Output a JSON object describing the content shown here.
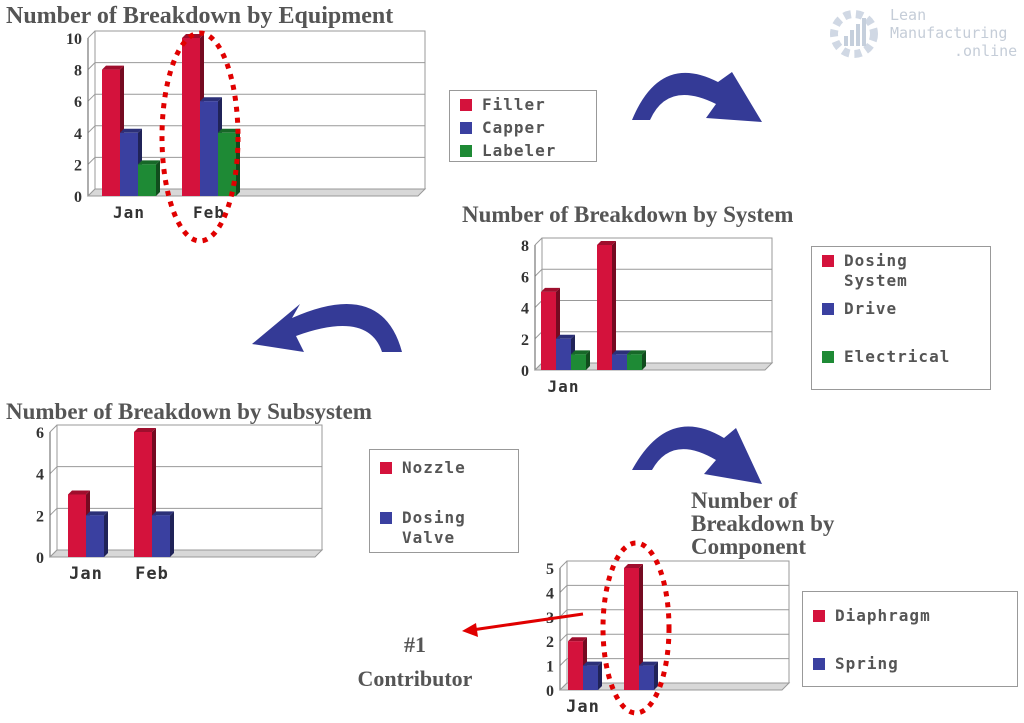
{
  "charts": [
    {
      "id": "equipment",
      "title": "Number of Breakdown by Equipment",
      "chart_data": {
        "type": "bar",
        "categories": [
          "Jan",
          "Feb"
        ],
        "series": [
          {
            "name": "Filler",
            "values": [
              8,
              10
            ]
          },
          {
            "name": "Capper",
            "values": [
              4,
              6
            ]
          },
          {
            "name": "Labeler",
            "values": [
              2,
              4
            ]
          }
        ],
        "ylim": [
          0,
          10
        ],
        "yticks": [
          0,
          2,
          4,
          6,
          8,
          10
        ],
        "grid": true,
        "legend": "right"
      }
    },
    {
      "id": "system",
      "title": "Number of Breakdown by System",
      "chart_data": {
        "type": "bar",
        "categories": [
          "Jan",
          ""
        ],
        "series": [
          {
            "name": "Dosing System",
            "values": [
              5,
              8
            ]
          },
          {
            "name": "Drive",
            "values": [
              2,
              1
            ]
          },
          {
            "name": "Electrical",
            "values": [
              1,
              1
            ]
          }
        ],
        "ylim": [
          0,
          8
        ],
        "yticks": [
          0,
          2,
          4,
          6,
          8
        ],
        "grid": true,
        "legend": "right"
      }
    },
    {
      "id": "subsystem",
      "title": "Number of Breakdown by Subsystem",
      "chart_data": {
        "type": "bar",
        "categories": [
          "Jan",
          "Feb"
        ],
        "series": [
          {
            "name": "Nozzle",
            "values": [
              3,
              6
            ]
          },
          {
            "name": "Dosing Valve",
            "values": [
              2,
              2
            ]
          }
        ],
        "ylim": [
          0,
          6
        ],
        "yticks": [
          0,
          2,
          4,
          6
        ],
        "grid": true,
        "legend": "right"
      }
    },
    {
      "id": "component",
      "title": "Number of Breakdown by Component",
      "chart_data": {
        "type": "bar",
        "categories": [
          "Jan",
          ""
        ],
        "series": [
          {
            "name": "Diaphragm",
            "values": [
              2,
              5
            ]
          },
          {
            "name": "Spring",
            "values": [
              1,
              1
            ]
          }
        ],
        "ylim": [
          0,
          5
        ],
        "yticks": [
          0,
          1,
          2,
          3,
          4,
          5
        ],
        "grid": true,
        "legend": "right"
      }
    }
  ],
  "colors": {
    "series1": "#d4123c",
    "series2": "#3a40a0",
    "series3": "#1e8a35",
    "highlight": "#e00000",
    "arrow": "#343a96"
  },
  "annotation": {
    "line1": "#1",
    "line2": "Contributor"
  },
  "logo": {
    "line1": "Lean",
    "line2": "Manufacturing",
    "line3": ".online"
  }
}
